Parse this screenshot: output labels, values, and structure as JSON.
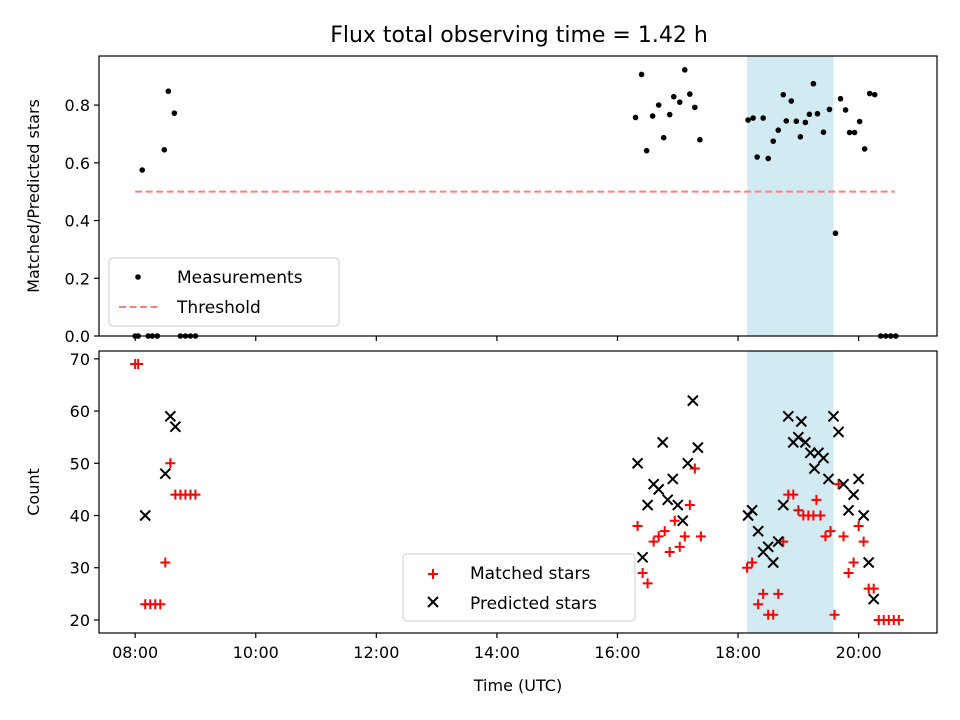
{
  "figure": {
    "title": "Flux total observing time = 1.42 h"
  },
  "chart_data": [
    {
      "type": "scatter",
      "panel": "top",
      "title": "Flux total observing time = 1.42 h",
      "ylabel": "Matched/Predicted stars",
      "xlabel": "",
      "xlim": [
        "07:24",
        "21:18"
      ],
      "ylim": [
        0,
        0.97
      ],
      "yticks": [
        0.0,
        0.2,
        0.4,
        0.6,
        0.8
      ],
      "ytick_labels": [
        "0.0",
        "0.2",
        "0.4",
        "0.6",
        "0.8"
      ],
      "grid": false,
      "legend_position": "lower-left",
      "highlight_span": {
        "start": "18:09",
        "end": "19:35",
        "color": "#add8e6"
      },
      "series": [
        {
          "name": "Measurements",
          "kind": "points",
          "color": "#000000",
          "points": [
            [
              "08:00",
              0.0
            ],
            [
              "08:03",
              0.0
            ],
            [
              "08:07",
              0.575
            ],
            [
              "08:13",
              0.0
            ],
            [
              "08:17",
              0.0
            ],
            [
              "08:22",
              0.0
            ],
            [
              "08:29",
              0.645
            ],
            [
              "08:33",
              0.848
            ],
            [
              "08:39",
              0.772
            ],
            [
              "08:45",
              0.0
            ],
            [
              "08:50",
              0.0
            ],
            [
              "08:55",
              0.0
            ],
            [
              "09:00",
              0.0
            ],
            [
              "16:18",
              0.757
            ],
            [
              "16:24",
              0.906
            ],
            [
              "16:29",
              0.642
            ],
            [
              "16:35",
              0.762
            ],
            [
              "16:41",
              0.8
            ],
            [
              "16:46",
              0.687
            ],
            [
              "16:52",
              0.767
            ],
            [
              "16:56",
              0.829
            ],
            [
              "17:02",
              0.81
            ],
            [
              "17:07",
              0.922
            ],
            [
              "17:12",
              0.838
            ],
            [
              "17:17",
              0.792
            ],
            [
              "17:22",
              0.68
            ],
            [
              "18:10",
              0.748
            ],
            [
              "18:15",
              0.755
            ],
            [
              "18:19",
              0.62
            ],
            [
              "18:25",
              0.755
            ],
            [
              "18:30",
              0.615
            ],
            [
              "18:35",
              0.675
            ],
            [
              "18:40",
              0.713
            ],
            [
              "18:45",
              0.836
            ],
            [
              "18:48",
              0.745
            ],
            [
              "18:53",
              0.814
            ],
            [
              "18:58",
              0.744
            ],
            [
              "19:02",
              0.69
            ],
            [
              "19:07",
              0.74
            ],
            [
              "19:11",
              0.768
            ],
            [
              "19:15",
              0.874
            ],
            [
              "19:19",
              0.77
            ],
            [
              "19:25",
              0.706
            ],
            [
              "19:31",
              0.785
            ],
            [
              "19:37",
              0.356
            ],
            [
              "19:42",
              0.822
            ],
            [
              "19:47",
              0.783
            ],
            [
              "19:51",
              0.705
            ],
            [
              "19:56",
              0.705
            ],
            [
              "20:01",
              0.743
            ],
            [
              "20:06",
              0.648
            ],
            [
              "20:11",
              0.84
            ],
            [
              "20:16",
              0.836
            ],
            [
              "20:22",
              0.0
            ],
            [
              "20:27",
              0.0
            ],
            [
              "20:32",
              0.0
            ],
            [
              "20:37",
              0.0
            ]
          ]
        },
        {
          "name": "Threshold",
          "kind": "line",
          "style": "dashed",
          "color": "#ff7f7f",
          "points": [
            [
              "08:00",
              0.5
            ],
            [
              "20:36",
              0.5
            ]
          ]
        }
      ]
    },
    {
      "type": "scatter",
      "panel": "bottom",
      "title": "",
      "xlabel": "Time (UTC)",
      "ylabel": "Count",
      "xlim": [
        "07:24",
        "21:18"
      ],
      "ylim": [
        17.5,
        71.5
      ],
      "xticks": [
        "08:00",
        "10:00",
        "12:00",
        "14:00",
        "16:00",
        "18:00",
        "20:00"
      ],
      "xtick_labels": [
        "08:00",
        "10:00",
        "12:00",
        "14:00",
        "16:00",
        "18:00",
        "20:00"
      ],
      "yticks": [
        20,
        30,
        40,
        50,
        60,
        70
      ],
      "ytick_labels": [
        "20",
        "30",
        "40",
        "50",
        "60",
        "70"
      ],
      "grid": false,
      "legend_position": "lower-center",
      "highlight_span": {
        "start": "18:09",
        "end": "19:35",
        "color": "#add8e6"
      },
      "series": [
        {
          "name": "Matched stars",
          "kind": "plus",
          "color": "#ff0000",
          "points": [
            [
              "08:00",
              69
            ],
            [
              "08:03",
              69
            ],
            [
              "08:10",
              23
            ],
            [
              "08:15",
              23
            ],
            [
              "08:20",
              23
            ],
            [
              "08:25",
              23
            ],
            [
              "08:30",
              31
            ],
            [
              "08:35",
              50
            ],
            [
              "08:40",
              44
            ],
            [
              "08:45",
              44
            ],
            [
              "08:50",
              44
            ],
            [
              "08:55",
              44
            ],
            [
              "09:00",
              44
            ],
            [
              "16:20",
              38
            ],
            [
              "16:25",
              29
            ],
            [
              "16:30",
              27
            ],
            [
              "16:36",
              35
            ],
            [
              "16:41",
              36
            ],
            [
              "16:47",
              37
            ],
            [
              "16:52",
              33
            ],
            [
              "16:57",
              39
            ],
            [
              "17:02",
              34
            ],
            [
              "17:07",
              36
            ],
            [
              "17:12",
              42
            ],
            [
              "17:17",
              49
            ],
            [
              "17:23",
              36
            ],
            [
              "18:09",
              30
            ],
            [
              "18:14",
              31
            ],
            [
              "18:20",
              23
            ],
            [
              "18:25",
              25
            ],
            [
              "18:30",
              21
            ],
            [
              "18:35",
              21
            ],
            [
              "18:40",
              25
            ],
            [
              "18:45",
              35
            ],
            [
              "18:50",
              44
            ],
            [
              "18:55",
              44
            ],
            [
              "19:00",
              41
            ],
            [
              "19:05",
              40
            ],
            [
              "19:10",
              40
            ],
            [
              "19:15",
              40
            ],
            [
              "19:18",
              43
            ],
            [
              "19:22",
              40
            ],
            [
              "19:27",
              36
            ],
            [
              "19:32",
              37
            ],
            [
              "19:36",
              21
            ],
            [
              "19:40",
              46
            ],
            [
              "19:45",
              36
            ],
            [
              "19:50",
              29
            ],
            [
              "19:55",
              31
            ],
            [
              "20:00",
              38
            ],
            [
              "20:05",
              35
            ],
            [
              "20:10",
              26
            ],
            [
              "20:15",
              26
            ],
            [
              "20:20",
              20
            ],
            [
              "20:25",
              20
            ],
            [
              "20:30",
              20
            ],
            [
              "20:35",
              20
            ],
            [
              "20:40",
              20
            ]
          ]
        },
        {
          "name": "Predicted stars",
          "kind": "x",
          "color": "#000000",
          "points": [
            [
              "08:10",
              40
            ],
            [
              "08:30",
              48
            ],
            [
              "08:35",
              59
            ],
            [
              "08:40",
              57
            ],
            [
              "16:20",
              50
            ],
            [
              "16:25",
              32
            ],
            [
              "16:30",
              42
            ],
            [
              "16:36",
              46
            ],
            [
              "16:41",
              45
            ],
            [
              "16:45",
              54
            ],
            [
              "16:50",
              43
            ],
            [
              "16:55",
              47
            ],
            [
              "17:00",
              42
            ],
            [
              "17:05",
              39
            ],
            [
              "17:10",
              50
            ],
            [
              "17:15",
              62
            ],
            [
              "17:20",
              53
            ],
            [
              "18:10",
              40
            ],
            [
              "18:14",
              41
            ],
            [
              "18:20",
              37
            ],
            [
              "18:25",
              33
            ],
            [
              "18:30",
              34
            ],
            [
              "18:35",
              31
            ],
            [
              "18:40",
              35
            ],
            [
              "18:45",
              42
            ],
            [
              "18:50",
              59
            ],
            [
              "18:55",
              54
            ],
            [
              "19:00",
              55
            ],
            [
              "19:03",
              58
            ],
            [
              "19:07",
              54
            ],
            [
              "19:12",
              52
            ],
            [
              "19:16",
              49
            ],
            [
              "19:20",
              52
            ],
            [
              "19:25",
              51
            ],
            [
              "19:30",
              47
            ],
            [
              "19:35",
              59
            ],
            [
              "19:40",
              56
            ],
            [
              "19:45",
              46
            ],
            [
              "19:50",
              41
            ],
            [
              "19:55",
              44
            ],
            [
              "20:00",
              47
            ],
            [
              "20:05",
              40
            ],
            [
              "20:10",
              31
            ],
            [
              "20:15",
              24
            ]
          ]
        }
      ]
    }
  ]
}
